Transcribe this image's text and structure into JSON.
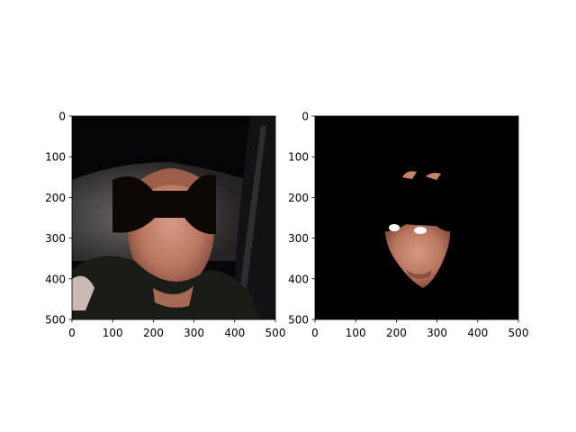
{
  "chart_data": [
    {
      "type": "image",
      "title": "",
      "xlabel": "",
      "ylabel": "",
      "xlim": [
        0,
        500
      ],
      "ylim": [
        500,
        0
      ],
      "x_ticks": [
        0,
        100,
        200,
        300,
        400,
        500
      ],
      "y_ticks": [
        0,
        100,
        200,
        300,
        400,
        500
      ],
      "content": "photo of a man in a car with a black bow-tie-shaped mask over the eyes"
    },
    {
      "type": "image",
      "title": "",
      "xlabel": "",
      "ylabel": "",
      "xlim": [
        0,
        500
      ],
      "ylim": [
        500,
        0
      ],
      "x_ticks": [
        0,
        100,
        200,
        300,
        400,
        500
      ],
      "y_ticks": [
        0,
        100,
        200,
        300,
        400,
        500
      ],
      "content": "segmented face region on black background with masked eye area"
    }
  ],
  "colors": {
    "axis": "#000000",
    "background_dark": "#000000",
    "mask": "#0d0706",
    "skin": "#c9836c"
  }
}
